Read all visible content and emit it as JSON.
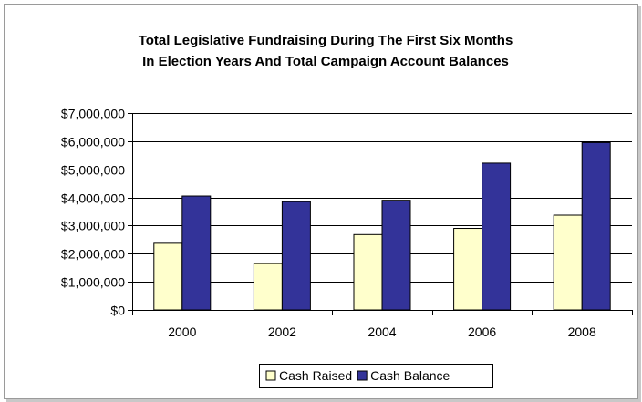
{
  "chart_data": {
    "type": "bar",
    "title_lines": [
      "Total Legislative Fundraising During The First Six Months",
      "In Election Years And Total Campaign Account Balances"
    ],
    "xlabel": "",
    "ylabel": "",
    "categories": [
      "2000",
      "2002",
      "2004",
      "2006",
      "2008"
    ],
    "series": [
      {
        "name": "Cash Raised",
        "values": [
          2370000,
          1650000,
          2680000,
          2900000,
          3370000
        ],
        "color": "#ffffcc"
      },
      {
        "name": "Cash Balance",
        "values": [
          4050000,
          3850000,
          3900000,
          5220000,
          5950000
        ],
        "color": "#333399"
      }
    ],
    "ylim": [
      0,
      7000000
    ],
    "yticks": [
      0,
      1000000,
      2000000,
      3000000,
      4000000,
      5000000,
      6000000,
      7000000
    ],
    "ytick_labels": [
      "$0",
      "$1,000,000",
      "$2,000,000",
      "$3,000,000",
      "$4,000,000",
      "$5,000,000",
      "$6,000,000",
      "$7,000,000"
    ],
    "grid": true,
    "legend_position": "bottom"
  }
}
